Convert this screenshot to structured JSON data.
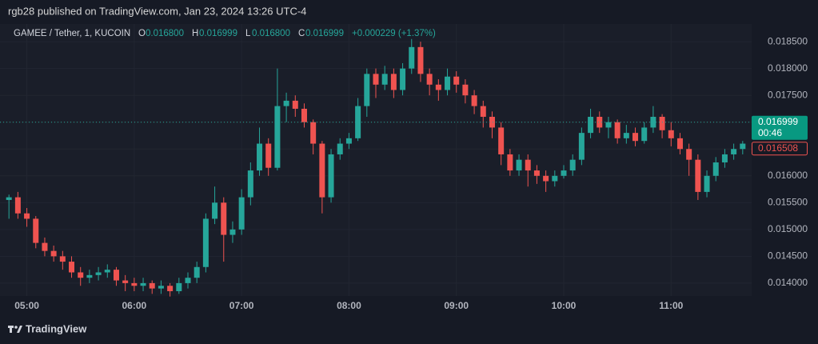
{
  "header": {
    "published": "rgb28 published on TradingView.com, Jan 23, 2024 13:26 UTC-4",
    "symbol": "GAMEE / Tether, 1, KUCOIN",
    "o_label": "O",
    "o_value": "0.016800",
    "h_label": "H",
    "h_value": "0.016999",
    "l_label": "L",
    "l_value": "0.016800",
    "c_label": "C",
    "c_value": "0.016999",
    "change": "+0.000229 (+1.37%)"
  },
  "footer": {
    "brand": "TradingView"
  },
  "chart_data": {
    "type": "candlestick",
    "up_color": "#26a69a",
    "down_color": "#ef5350",
    "x": [
      "04:50",
      "04:55",
      "05:00",
      "05:05",
      "05:10",
      "05:15",
      "05:20",
      "05:25",
      "05:30",
      "05:35",
      "05:40",
      "05:45",
      "05:50",
      "05:55",
      "06:00",
      "06:05",
      "06:10",
      "06:15",
      "06:20",
      "06:25",
      "06:30",
      "06:35",
      "06:40",
      "06:45",
      "06:50",
      "06:55",
      "07:00",
      "07:05",
      "07:10",
      "07:15",
      "07:20",
      "07:25",
      "07:30",
      "07:35",
      "07:40",
      "07:45",
      "07:50",
      "07:55",
      "08:00",
      "08:05",
      "08:10",
      "08:15",
      "08:20",
      "08:25",
      "08:30",
      "08:35",
      "08:40",
      "08:45",
      "08:50",
      "08:55",
      "09:00",
      "09:05",
      "09:10",
      "09:15",
      "09:20",
      "09:25",
      "09:30",
      "09:35",
      "09:40",
      "09:45",
      "09:50",
      "09:55",
      "10:00",
      "10:05",
      "10:10",
      "10:15",
      "10:20",
      "10:25",
      "10:30",
      "10:35",
      "10:40",
      "10:45",
      "10:50",
      "10:55",
      "11:00",
      "11:05",
      "11:10",
      "11:15",
      "11:20",
      "11:25",
      "11:30",
      "11:35",
      "11:40"
    ],
    "open": [
      0.01555,
      0.0156,
      0.0153,
      0.0152,
      0.01475,
      0.0146,
      0.0145,
      0.0144,
      0.0142,
      0.0141,
      0.01415,
      0.0142,
      0.01425,
      0.01405,
      0.014,
      0.01395,
      0.014,
      0.0139,
      0.01395,
      0.01385,
      0.014,
      0.0141,
      0.0143,
      0.0152,
      0.0155,
      0.0149,
      0.015,
      0.0156,
      0.0161,
      0.0166,
      0.01615,
      0.0173,
      0.0174,
      0.01725,
      0.017,
      0.0166,
      0.0156,
      0.0164,
      0.0166,
      0.0167,
      0.0173,
      0.0179,
      0.0177,
      0.0179,
      0.0176,
      0.018,
      0.0184,
      0.0179,
      0.0177,
      0.0176,
      0.01785,
      0.0177,
      0.0175,
      0.0173,
      0.0171,
      0.0169,
      0.0164,
      0.0161,
      0.0163,
      0.0161,
      0.016,
      0.0159,
      0.016,
      0.0161,
      0.0163,
      0.0168,
      0.0171,
      0.0169,
      0.017,
      0.0167,
      0.0168,
      0.01665,
      0.0169,
      0.0171,
      0.01685,
      0.0167,
      0.0165,
      0.0163,
      0.0157,
      0.016,
      0.01625,
      0.0164,
      0.0165
    ],
    "high": [
      0.01565,
      0.0157,
      0.0154,
      0.01525,
      0.01485,
      0.0147,
      0.0146,
      0.0145,
      0.0143,
      0.01425,
      0.0143,
      0.01435,
      0.0143,
      0.01415,
      0.0141,
      0.0141,
      0.01405,
      0.01405,
      0.014,
      0.0141,
      0.0142,
      0.0144,
      0.0153,
      0.0158,
      0.0156,
      0.01515,
      0.01575,
      0.01625,
      0.0169,
      0.0167,
      0.018,
      0.01755,
      0.0175,
      0.01735,
      0.01705,
      0.01665,
      0.0165,
      0.0167,
      0.0168,
      0.01745,
      0.018,
      0.018,
      0.01805,
      0.018,
      0.0181,
      0.01855,
      0.0185,
      0.018,
      0.0178,
      0.018,
      0.01795,
      0.0178,
      0.0176,
      0.0174,
      0.0172,
      0.017,
      0.0165,
      0.0164,
      0.0164,
      0.0162,
      0.0161,
      0.0161,
      0.0162,
      0.0164,
      0.0169,
      0.01725,
      0.0172,
      0.0171,
      0.01705,
      0.01695,
      0.0169,
      0.017,
      0.0173,
      0.01715,
      0.017,
      0.0168,
      0.0166,
      0.0164,
      0.0161,
      0.01635,
      0.0165,
      0.0166,
      0.01665
    ],
    "low": [
      0.0152,
      0.0152,
      0.01505,
      0.01465,
      0.0145,
      0.0144,
      0.01425,
      0.0141,
      0.01395,
      0.014,
      0.01405,
      0.0141,
      0.01395,
      0.01385,
      0.01385,
      0.01385,
      0.0138,
      0.0138,
      0.01375,
      0.0138,
      0.0139,
      0.014,
      0.0142,
      0.0151,
      0.0144,
      0.01475,
      0.0149,
      0.01545,
      0.016,
      0.016,
      0.0161,
      0.017,
      0.0171,
      0.0169,
      0.0164,
      0.0153,
      0.0155,
      0.0163,
      0.0165,
      0.01665,
      0.0171,
      0.01745,
      0.0176,
      0.01745,
      0.0175,
      0.0179,
      0.01775,
      0.0175,
      0.0174,
      0.0175,
      0.01755,
      0.01735,
      0.01715,
      0.0169,
      0.0167,
      0.0162,
      0.016,
      0.016,
      0.0158,
      0.01585,
      0.0157,
      0.0158,
      0.01595,
      0.016,
      0.0162,
      0.0167,
      0.0168,
      0.0167,
      0.0166,
      0.0166,
      0.01655,
      0.0166,
      0.0168,
      0.0167,
      0.01655,
      0.0164,
      0.016,
      0.01555,
      0.0156,
      0.0159,
      0.01615,
      0.0163,
      0.0164
    ],
    "close": [
      0.0156,
      0.0153,
      0.0152,
      0.01475,
      0.0146,
      0.0145,
      0.0144,
      0.0142,
      0.0141,
      0.01415,
      0.0142,
      0.01425,
      0.01405,
      0.014,
      0.01395,
      0.014,
      0.0139,
      0.01395,
      0.01385,
      0.014,
      0.0141,
      0.0143,
      0.0152,
      0.0155,
      0.0149,
      0.015,
      0.0156,
      0.0161,
      0.0166,
      0.01615,
      0.0173,
      0.0174,
      0.01725,
      0.017,
      0.0166,
      0.0156,
      0.0164,
      0.0166,
      0.0167,
      0.0173,
      0.0179,
      0.0177,
      0.0179,
      0.0176,
      0.018,
      0.0184,
      0.0179,
      0.0177,
      0.0176,
      0.01785,
      0.0177,
      0.0175,
      0.0173,
      0.0171,
      0.0169,
      0.0164,
      0.0161,
      0.0163,
      0.0161,
      0.016,
      0.0159,
      0.016,
      0.0161,
      0.0163,
      0.0168,
      0.0171,
      0.0169,
      0.017,
      0.0167,
      0.0168,
      0.01665,
      0.0169,
      0.0171,
      0.01685,
      0.0167,
      0.0165,
      0.0163,
      0.0157,
      0.016,
      0.01625,
      0.0164,
      0.0165,
      0.0166
    ],
    "xlim": [
      "04:45",
      "11:45"
    ],
    "xticks": [
      "05:00",
      "06:00",
      "07:00",
      "08:00",
      "09:00",
      "10:00",
      "11:00"
    ],
    "ylim": [
      0.01376,
      0.01883
    ],
    "yticks": [
      {
        "value": 0.014,
        "label": "0.014000"
      },
      {
        "value": 0.0145,
        "label": "0.014500"
      },
      {
        "value": 0.015,
        "label": "0.015000"
      },
      {
        "value": 0.0155,
        "label": "0.015500"
      },
      {
        "value": 0.016,
        "label": "0.016000"
      },
      {
        "value": 0.0165,
        "label": "0.016500"
      },
      {
        "value": 0.017,
        "label": "0.017000"
      },
      {
        "value": 0.0175,
        "label": "0.017500"
      },
      {
        "value": 0.018,
        "label": "0.018000"
      },
      {
        "value": 0.0185,
        "label": "0.018500"
      }
    ],
    "last_price": 0.016999,
    "countdown": "00:46",
    "marked_price": 0.016508
  }
}
